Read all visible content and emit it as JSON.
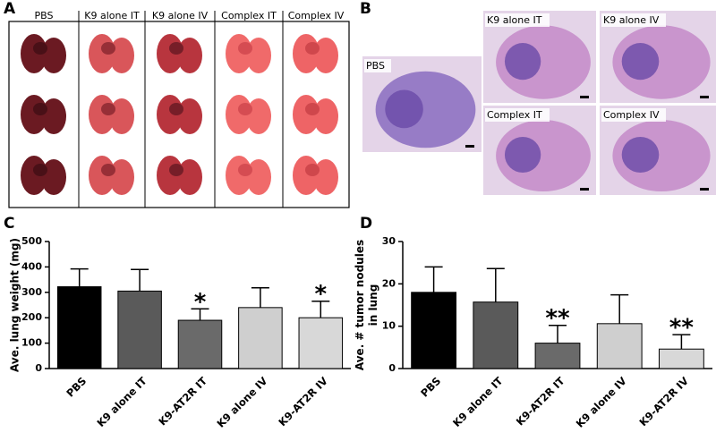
{
  "panel_a": {
    "label": "A",
    "columns": [
      "PBS",
      "K9 alone IT",
      "K9 alone IV",
      "Complex IT",
      "Complex IV"
    ]
  },
  "panel_b": {
    "label": "B",
    "images": [
      "PBS",
      "K9 alone IT",
      "K9 alone IV",
      "Complex IT",
      "Complex IV"
    ]
  },
  "chart_data": [
    {
      "type": "bar",
      "label": "C",
      "ylabel": [
        "Ave. lung weight (mg)"
      ],
      "categories": [
        "PBS",
        "K9 alone IT",
        "K9-AT2R IT",
        "K9 alone IV",
        "K9-AT2R IV"
      ],
      "values": [
        322,
        305,
        190,
        240,
        200
      ],
      "errors": [
        70,
        85,
        45,
        78,
        65
      ],
      "annotations": [
        null,
        null,
        "*",
        null,
        "*"
      ],
      "colors": [
        "#000000",
        "#5a5a5a",
        "#6a6a6a",
        "#cfcfcf",
        "#d8d8d8"
      ],
      "ylim": [
        0,
        500
      ],
      "yticks": [
        0,
        100,
        200,
        300,
        400,
        500
      ]
    },
    {
      "type": "bar",
      "label": "D",
      "ylabel": [
        "Ave. # tumor nodules",
        "in lung"
      ],
      "categories": [
        "PBS",
        "K9 alone IT",
        "K9-AT2R IT",
        "K9 alone IV",
        "K9-AT2R IV"
      ],
      "values": [
        18,
        15.7,
        6,
        10.6,
        4.6
      ],
      "errors": [
        6,
        7.9,
        4.2,
        6.8,
        3.4
      ],
      "annotations": [
        null,
        null,
        "**",
        null,
        "**"
      ],
      "colors": [
        "#000000",
        "#5a5a5a",
        "#6a6a6a",
        "#cfcfcf",
        "#d8d8d8"
      ],
      "ylim": [
        0,
        30
      ],
      "yticks": [
        0,
        10,
        20,
        30
      ]
    }
  ]
}
